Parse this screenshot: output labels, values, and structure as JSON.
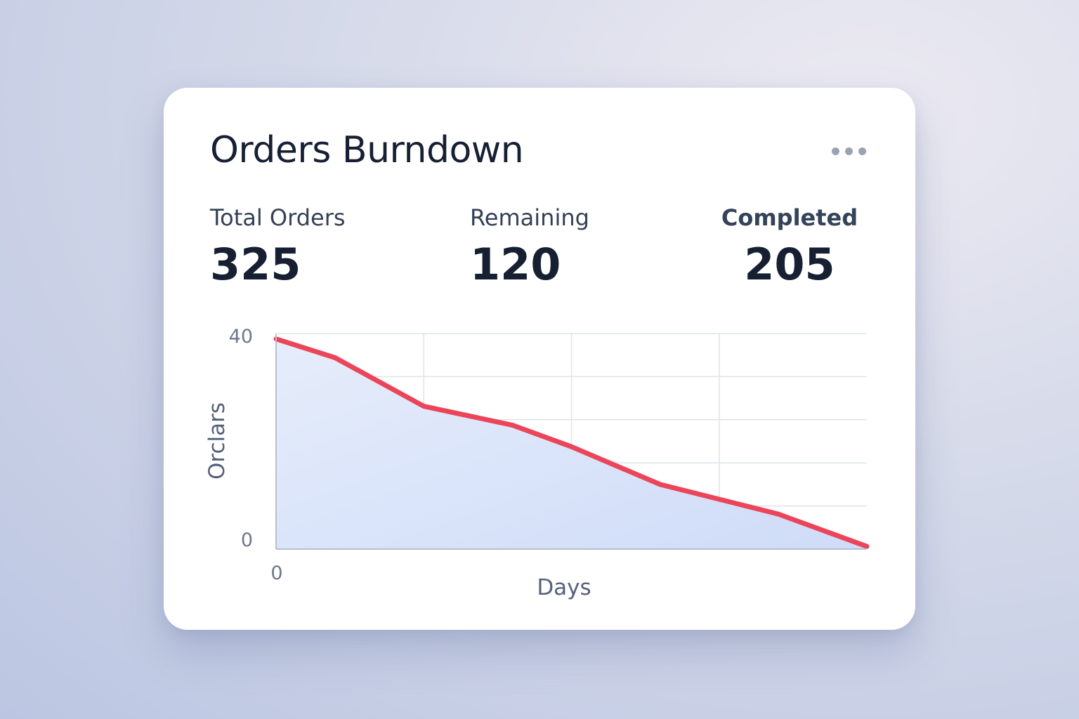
{
  "card": {
    "title": "Orders Burndown",
    "menu_icon": "more-horizontal-icon"
  },
  "stats": {
    "total": {
      "label": "Total Orders",
      "value": "325"
    },
    "remaining": {
      "label": "Remaining",
      "value": "120"
    },
    "completed": {
      "label": "Completed",
      "value": "205"
    }
  },
  "chart_data": {
    "type": "area",
    "xlabel": "Days",
    "ylabel": "Orclars",
    "ylim": [
      0,
      40
    ],
    "xlim": [
      0,
      10
    ],
    "y_tick_labels": [
      "40",
      "0"
    ],
    "x_tick_labels": [
      "0"
    ],
    "grid": true,
    "line_color": "#ec4459",
    "fill_color": "#d4e0fa",
    "series": [
      {
        "x": [
          0,
          1,
          2.5,
          4,
          5,
          6.5,
          8.5,
          10
        ],
        "values": [
          39,
          35.5,
          26.5,
          23,
          19,
          12,
          6.5,
          0.5
        ]
      }
    ]
  }
}
